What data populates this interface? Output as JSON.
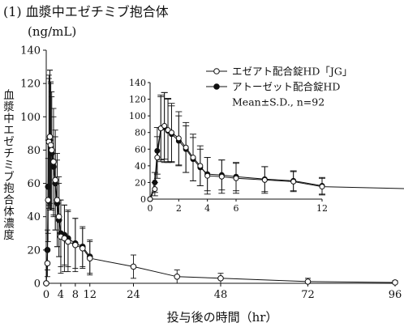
{
  "header": {
    "title": "(1) 血漿中エゼチミブ抱合体",
    "unit": "(ng/mL)"
  },
  "chart_data": {
    "type": "line",
    "ylabel": "血漿中エゼチミブ抱合体濃度",
    "xlabel": "投与後の時間（hr）",
    "xlim": [
      0,
      96
    ],
    "ylim": [
      0,
      140
    ],
    "xticks": [
      "0",
      "4",
      "8",
      "12",
      "24",
      "48",
      "72",
      "96"
    ],
    "yticks": [
      "0",
      "20",
      "40",
      "60",
      "80",
      "100",
      "120",
      "140"
    ],
    "grid": false,
    "legend": {
      "position": "top-right",
      "items": [
        "エゼアト配合錠HD「JG」",
        "アトーゼット配合錠HD"
      ],
      "stats": "Mean±S.D., n=92"
    },
    "series": [
      {
        "name": "エゼアト配合錠HD「JG」",
        "marker": "open-circle",
        "x": [
          0,
          0.33,
          0.5,
          0.75,
          1,
          1.25,
          1.5,
          2,
          2.5,
          3,
          3.5,
          4,
          5,
          6,
          8,
          10,
          12,
          24,
          36,
          48,
          72,
          96
        ],
        "y": [
          0,
          12,
          50,
          85,
          88,
          83,
          80,
          73,
          62,
          50,
          40,
          28,
          27,
          25,
          23,
          21,
          15,
          10,
          4,
          3,
          1,
          0.5
        ],
        "sd": [
          0,
          8,
          25,
          38,
          40,
          38,
          35,
          32,
          30,
          28,
          24,
          22,
          20,
          18,
          16,
          12,
          10,
          7,
          4,
          3,
          2,
          1
        ]
      },
      {
        "name": "アトーゼット配合錠HD",
        "marker": "filled-circle",
        "x": [
          0,
          0.33,
          0.5,
          0.75,
          1,
          1.25,
          1.5,
          2,
          2.5,
          3,
          3.5,
          4,
          5,
          6,
          8,
          10,
          12
        ],
        "y": [
          0,
          20,
          58,
          85,
          86,
          82,
          78,
          70,
          60,
          48,
          38,
          30,
          29,
          27,
          24,
          22,
          16
        ],
        "sd": [
          0,
          12,
          28,
          40,
          42,
          38,
          34,
          30,
          28,
          26,
          22,
          20,
          18,
          17,
          15,
          12,
          10
        ]
      }
    ],
    "inset": {
      "xlim": [
        0,
        12
      ],
      "ylim": [
        0,
        140
      ],
      "xticks": [
        "0",
        "2",
        "4",
        "6",
        "12"
      ],
      "yticks": [
        "0",
        "20",
        "40",
        "60",
        "80",
        "100",
        "120",
        "140"
      ]
    }
  }
}
